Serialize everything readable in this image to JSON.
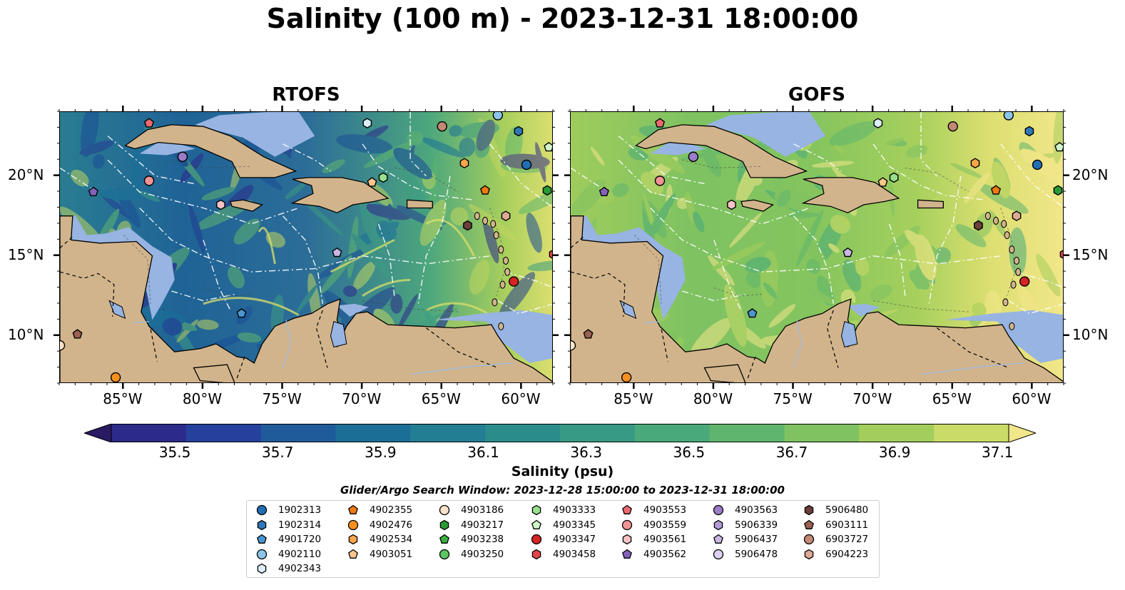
{
  "title": "Salinity (100 m) - 2023-12-31 18:00:00",
  "panels": [
    {
      "title": "RTOFS"
    },
    {
      "title": "GOFS"
    }
  ],
  "axes": {
    "x_tick_labels": [
      "85°W",
      "80°W",
      "75°W",
      "70°W",
      "65°W",
      "60°W"
    ],
    "x_ticks_deg": [
      -85,
      -80,
      -75,
      -70,
      -65,
      -60
    ],
    "y_tick_labels": [
      "20°N",
      "15°N",
      "10°N"
    ],
    "y_ticks_deg": [
      20,
      15,
      10
    ],
    "lon_range": [
      -89,
      -58
    ],
    "lat_range": [
      7,
      24
    ]
  },
  "colorbar": {
    "label": "Salinity (psu)",
    "ticks": [
      "35.5",
      "35.7",
      "35.9",
      "36.1",
      "36.3",
      "36.5",
      "36.7",
      "36.9",
      "37.1"
    ],
    "range": [
      35.5,
      37.1
    ],
    "extend": "both",
    "colors": [
      "#2a1a64",
      "#2c2a8a",
      "#25419d",
      "#1f5b9b",
      "#1b6f97",
      "#227e92",
      "#2b8c8c",
      "#379a84",
      "#49a97a",
      "#5fb56e",
      "#80c262",
      "#a4ce5c",
      "#cbdb68",
      "#f2e68a"
    ]
  },
  "search_window": "Glider/Argo Search Window: 2023-12-28 15:00:00 to 2023-12-31 18:00:00",
  "legend": [
    {
      "id": "1902313",
      "marker": "circle",
      "color": "#1f6fb4"
    },
    {
      "id": "1902314",
      "marker": "hexagon",
      "color": "#2f78b7"
    },
    {
      "id": "4901720",
      "marker": "pentagon",
      "color": "#4c95d0"
    },
    {
      "id": "4902110",
      "marker": "circle",
      "color": "#8cc4ea"
    },
    {
      "id": "4902343",
      "marker": "hexagon",
      "color": "#dbeefb"
    },
    {
      "id": "4902355",
      "marker": "pentagon",
      "color": "#f07a0f"
    },
    {
      "id": "4902476",
      "marker": "circle",
      "color": "#f7901e"
    },
    {
      "id": "4902534",
      "marker": "hexagon",
      "color": "#f9a64b"
    },
    {
      "id": "4903051",
      "marker": "pentagon",
      "color": "#fcc68c"
    },
    {
      "id": "4903186",
      "marker": "circle",
      "color": "#fde3c9"
    },
    {
      "id": "4903217",
      "marker": "hexagon",
      "color": "#2a9a35"
    },
    {
      "id": "4903238",
      "marker": "pentagon",
      "color": "#3cae3f"
    },
    {
      "id": "4903250",
      "marker": "circle",
      "color": "#5cc463"
    },
    {
      "id": "4903333",
      "marker": "hexagon",
      "color": "#99df8d"
    },
    {
      "id": "4903345",
      "marker": "pentagon",
      "color": "#cff6c8"
    },
    {
      "id": "4903347",
      "marker": "circle",
      "color": "#d62324"
    },
    {
      "id": "4903458",
      "marker": "hexagon",
      "color": "#e3444a"
    },
    {
      "id": "4903553",
      "marker": "pentagon",
      "color": "#ec6a6f"
    },
    {
      "id": "4903559",
      "marker": "circle",
      "color": "#f29394"
    },
    {
      "id": "4903561",
      "marker": "hexagon",
      "color": "#f9c3c4"
    },
    {
      "id": "4903562",
      "marker": "pentagon",
      "color": "#8462b8"
    },
    {
      "id": "4903563",
      "marker": "circle",
      "color": "#9b7cc8"
    },
    {
      "id": "5906339",
      "marker": "hexagon",
      "color": "#b29ad6"
    },
    {
      "id": "5906437",
      "marker": "pentagon",
      "color": "#c8b6e3"
    },
    {
      "id": "5906478",
      "marker": "circle",
      "color": "#ddd0ef"
    },
    {
      "id": "5906480",
      "marker": "hexagon",
      "color": "#6b3f3a"
    },
    {
      "id": "6903111",
      "marker": "pentagon",
      "color": "#9a6154"
    },
    {
      "id": "6903727",
      "marker": "circle",
      "color": "#c48877"
    },
    {
      "id": "6904223",
      "marker": "hexagon",
      "color": "#deaa95"
    }
  ],
  "observations": [
    {
      "id": "4903553",
      "lon": -83.4,
      "lat": 23.3
    },
    {
      "id": "4903186",
      "lon": -89.0,
      "lat": 9.4
    },
    {
      "id": "4903563",
      "lon": -81.3,
      "lat": 21.2
    },
    {
      "id": "4903559",
      "lon": -83.4,
      "lat": 19.7
    },
    {
      "id": "4903562",
      "lon": -86.9,
      "lat": 19.0
    },
    {
      "id": "4903561",
      "lon": -78.9,
      "lat": 18.2
    },
    {
      "id": "6903111",
      "lon": -87.9,
      "lat": 10.1
    },
    {
      "id": "4902476",
      "lon": -85.5,
      "lat": 7.4
    },
    {
      "id": "4901720",
      "lon": -77.6,
      "lat": 11.4
    },
    {
      "id": "5906437",
      "lon": -71.6,
      "lat": 15.2
    },
    {
      "id": "4902343",
      "lon": -69.7,
      "lat": 23.3
    },
    {
      "id": "4903051",
      "lon": -69.4,
      "lat": 19.6
    },
    {
      "id": "4903333",
      "lon": -68.7,
      "lat": 19.9
    },
    {
      "id": "6903727",
      "lon": -65.0,
      "lat": 23.1
    },
    {
      "id": "4902534",
      "lon": -63.6,
      "lat": 20.8
    },
    {
      "id": "4902355",
      "lon": -62.3,
      "lat": 19.1
    },
    {
      "id": "6904223",
      "lon": -61.0,
      "lat": 17.5
    },
    {
      "id": "5906480",
      "lon": -63.4,
      "lat": 16.9
    },
    {
      "id": "4902110",
      "lon": -61.5,
      "lat": 23.8
    },
    {
      "id": "1902314",
      "lon": -60.2,
      "lat": 22.8
    },
    {
      "id": "1902313",
      "lon": -59.7,
      "lat": 20.7
    },
    {
      "id": "4903345",
      "lon": -58.3,
      "lat": 21.8
    },
    {
      "id": "4903217",
      "lon": -58.4,
      "lat": 19.1
    },
    {
      "id": "4903458",
      "lon": -58.0,
      "lat": 15.1
    },
    {
      "id": "4903347",
      "lon": -60.5,
      "lat": 13.4
    }
  ]
}
